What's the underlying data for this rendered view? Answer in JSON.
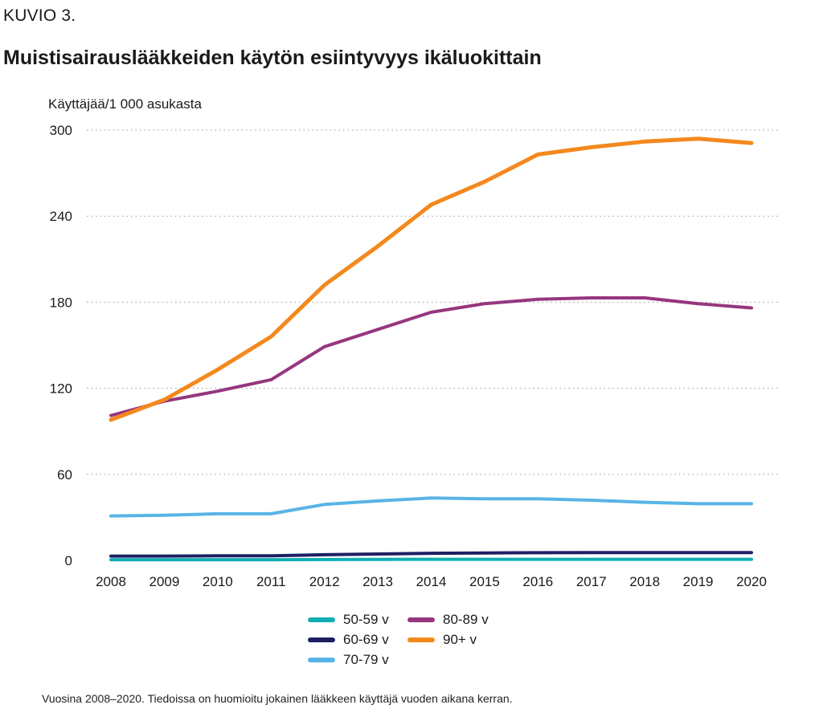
{
  "figure": {
    "label": "KUVIO 3.",
    "title": "Muistisairauslääkkeiden käytön esiintyvyys ikäluokittain",
    "footnote": "Vuosina 2008–2020. Tiedoissa on huomioitu jokainen lääkkeen käyttäjä vuoden aikana kerran."
  },
  "chart_data": {
    "type": "line",
    "title": "Muistisairauslääkkeiden käytön esiintyvyys ikäluokittain",
    "ylabel": "Käyttäjää/1 000 asukasta",
    "xlabel": "",
    "x": [
      "2008",
      "2009",
      "2010",
      "2011",
      "2012",
      "2013",
      "2014",
      "2015",
      "2016",
      "2017",
      "2018",
      "2019",
      "2020"
    ],
    "y_ticks": [
      0,
      60,
      120,
      180,
      240,
      300
    ],
    "ylim": [
      0,
      300
    ],
    "grid": "horizontal dotted",
    "legend_position": "bottom",
    "series": [
      {
        "name": "50-59 v",
        "color": "#10aeb4",
        "values": [
          0.5,
          0.5,
          0.5,
          0.5,
          0.6,
          0.7,
          0.8,
          0.8,
          0.8,
          0.8,
          0.8,
          0.8,
          0.8
        ]
      },
      {
        "name": "60-69 v",
        "color": "#1e1f63",
        "values": [
          3,
          3,
          3.2,
          3.2,
          4,
          4.5,
          5,
          5.2,
          5.4,
          5.5,
          5.5,
          5.5,
          5.5
        ]
      },
      {
        "name": "70-79 v",
        "color": "#58b4e6",
        "values": [
          31,
          31.5,
          32.5,
          32.5,
          39,
          41.5,
          43.5,
          43,
          43,
          42,
          40.5,
          39.5,
          39.5
        ]
      },
      {
        "name": "80-89 v",
        "color": "#96367f",
        "values": [
          101,
          111,
          118,
          126,
          149,
          161,
          173,
          179,
          182,
          183,
          183,
          179,
          176
        ]
      },
      {
        "name": "90+ v",
        "color": "#f3891d",
        "values": [
          98,
          112,
          133,
          156,
          192,
          219,
          248,
          264,
          283,
          288,
          292,
          294,
          291
        ]
      }
    ]
  }
}
